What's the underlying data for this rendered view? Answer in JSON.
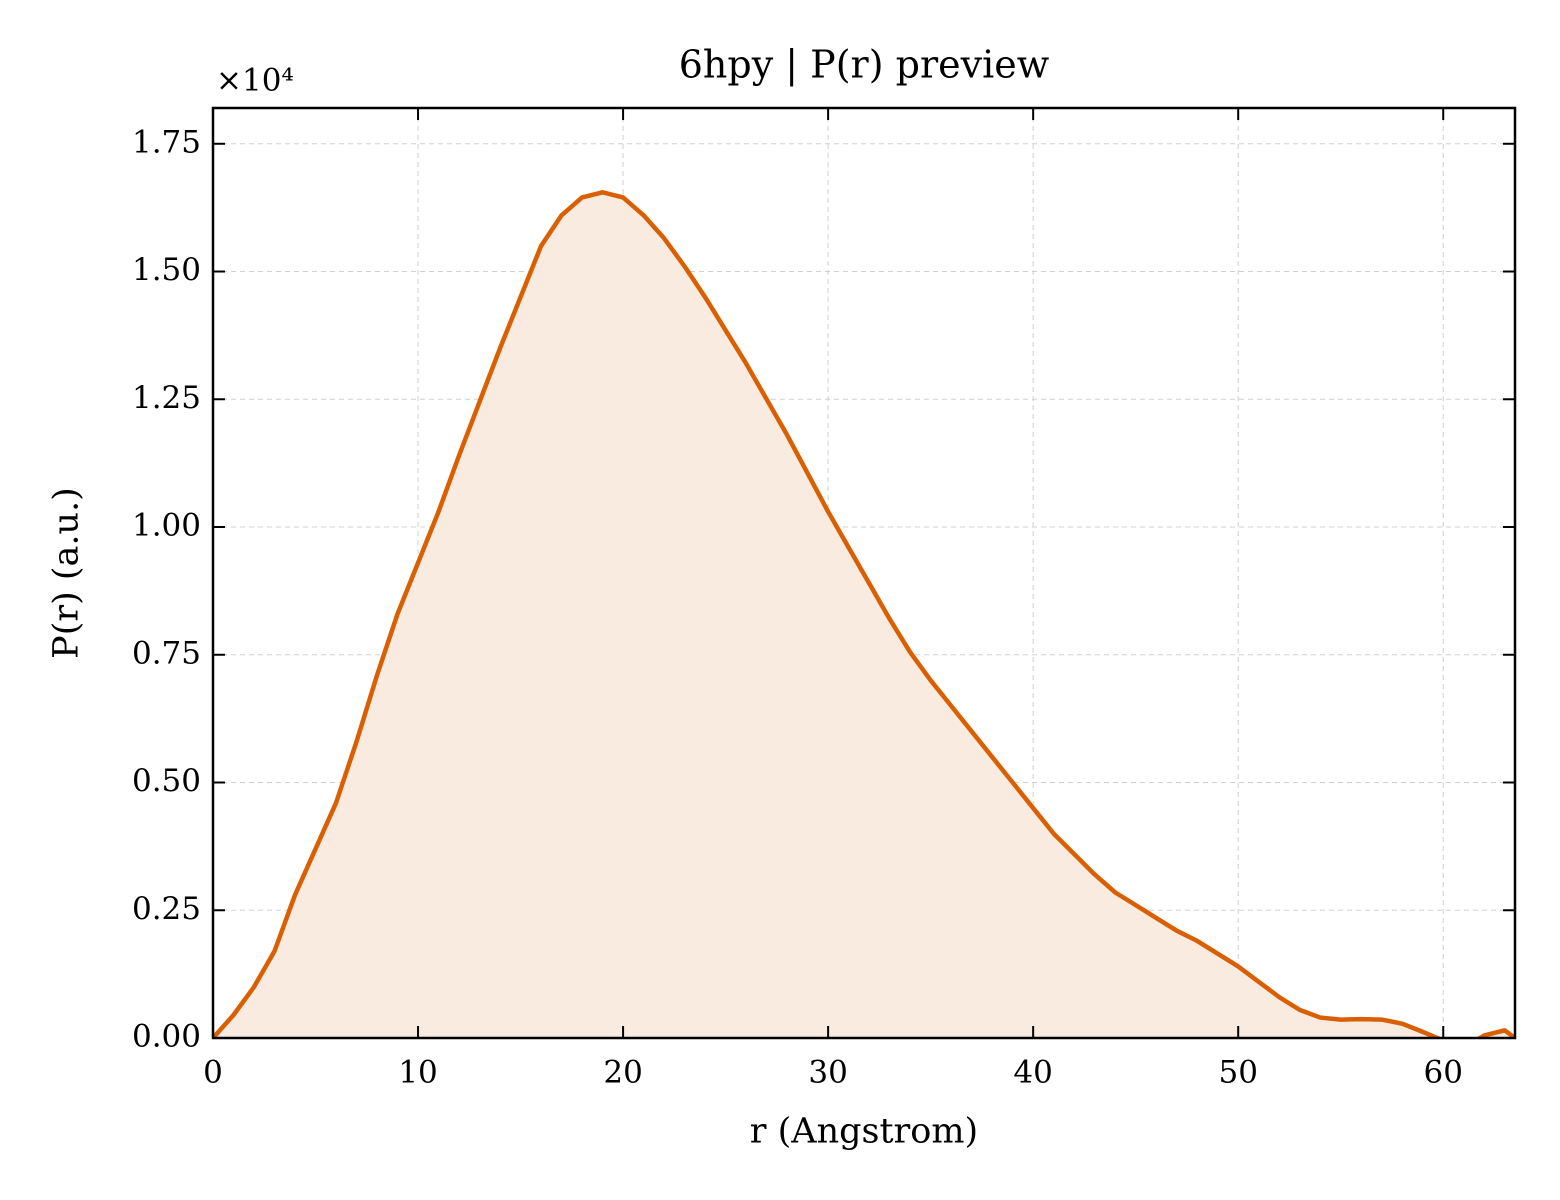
{
  "chart_data": {
    "type": "line",
    "title": "6hpy | P(r) preview",
    "xlabel": "r (Angstrom)",
    "ylabel": "P(r) (a.u.)",
    "y_offset_label": "×10⁴",
    "x": [
      0,
      1,
      2,
      3,
      4,
      5,
      6,
      7,
      8,
      9,
      10,
      11,
      12,
      13,
      14,
      15,
      16,
      17,
      18,
      19,
      20,
      21,
      22,
      23,
      24,
      25,
      26,
      27,
      28,
      29,
      30,
      31,
      32,
      33,
      34,
      35,
      36,
      37,
      38,
      39,
      40,
      41,
      42,
      43,
      44,
      45,
      46,
      47,
      48,
      49,
      50,
      51,
      52,
      53,
      54,
      55,
      56,
      57,
      58,
      59,
      60,
      61,
      62,
      63,
      63.5
    ],
    "values": [
      0,
      0.045,
      0.1,
      0.17,
      0.28,
      0.37,
      0.46,
      0.58,
      0.71,
      0.83,
      0.93,
      1.03,
      1.14,
      1.245,
      1.35,
      1.45,
      1.55,
      1.61,
      1.645,
      1.655,
      1.645,
      1.61,
      1.565,
      1.51,
      1.45,
      1.385,
      1.32,
      1.25,
      1.18,
      1.105,
      1.03,
      0.96,
      0.89,
      0.82,
      0.755,
      0.7,
      0.65,
      0.6,
      0.55,
      0.5,
      0.45,
      0.4,
      0.36,
      0.32,
      0.285,
      0.26,
      0.235,
      0.21,
      0.19,
      0.165,
      0.14,
      0.11,
      0.08,
      0.055,
      0.04,
      0.036,
      0.037,
      0.036,
      0.028,
      0.012,
      -0.005,
      -0.02,
      0.005,
      0.015,
      0
    ],
    "color": "#d95f02",
    "fill_color": "#f9ebe0",
    "xlim": [
      0,
      63.5
    ],
    "ylim": [
      0,
      1.82
    ],
    "xticks": [
      0,
      10,
      20,
      30,
      40,
      50,
      60
    ],
    "yticks": [
      {
        "value": 0,
        "label": "0.00"
      },
      {
        "value": 0.25,
        "label": "0.25"
      },
      {
        "value": 0.5,
        "label": "0.50"
      },
      {
        "value": 0.75,
        "label": "0.75"
      },
      {
        "value": 1,
        "label": "1.00"
      },
      {
        "value": 1.25,
        "label": "1.25"
      },
      {
        "value": 1.5,
        "label": "1.50"
      },
      {
        "value": 1.75,
        "label": "1.75"
      }
    ],
    "grid": true
  }
}
